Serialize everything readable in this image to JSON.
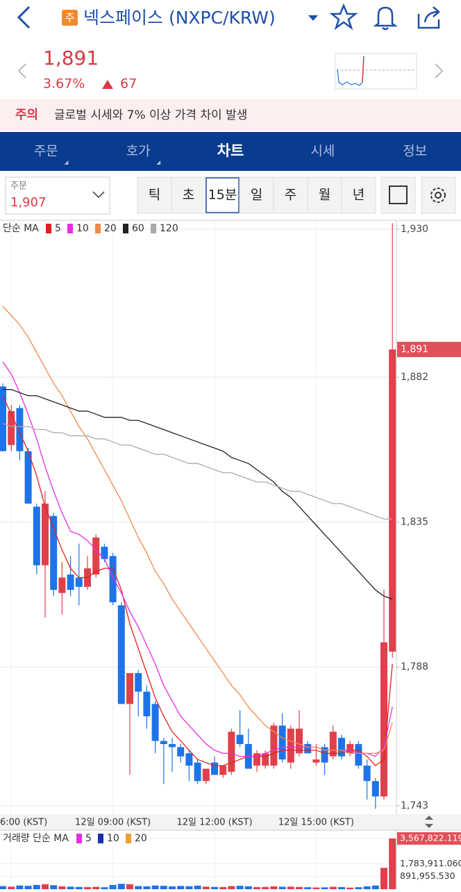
{
  "header": {
    "badge": "주",
    "title": "넥스페이스 (NXPC/KRW)"
  },
  "ticker": {
    "price": "1,891",
    "change_rate": "3.67%",
    "change": "67"
  },
  "notice": {
    "label": "주의",
    "message": "글로벌 시세와 7% 이상 가격 차이 발생"
  },
  "tabs": [
    "주문",
    "호가",
    "차트",
    "시세",
    "정보"
  ],
  "order": {
    "label": "주문",
    "price": "1,907"
  },
  "intervals": [
    "틱",
    "초",
    "15분",
    "일",
    "주",
    "월",
    "년"
  ],
  "chart_data": [
    {
      "type": "candlestick",
      "legend_title": "단순 MA",
      "up_color": "#e0404b",
      "down_color": "#1e73e8",
      "categories": [
        null,
        "6:00 (KST)",
        null,
        null,
        null,
        null,
        null,
        null,
        null,
        null,
        null,
        null,
        null,
        "12일 09:00 (KST)",
        null,
        null,
        null,
        null,
        null,
        null,
        null,
        null,
        null,
        null,
        null,
        "12일 12:00 (KST)",
        null,
        null,
        null,
        null,
        null,
        null,
        null,
        null,
        null,
        null,
        null,
        "12일 15:00 (KST)",
        null,
        null,
        null,
        null,
        null,
        null,
        null,
        null,
        null
      ],
      "open": [
        1879,
        1860,
        1872,
        1858,
        1840,
        1821,
        1837,
        1812,
        1818,
        1817,
        1814,
        1818,
        1827,
        1824,
        1808,
        1776,
        1786,
        1780,
        1776,
        1764,
        1763,
        1762,
        1760,
        1757,
        1751,
        1757,
        1753,
        1754,
        1766,
        1763,
        1756,
        1756,
        1756,
        1769,
        1757,
        1760,
        1763,
        1757,
        1762,
        1759,
        1765,
        1760,
        1763,
        1756,
        1751,
        1746,
        1793
      ],
      "high": [
        1880,
        1873,
        1873,
        1859,
        1841,
        1845,
        1838,
        1822,
        1824,
        1828,
        1824,
        1831,
        1828,
        1825,
        1809,
        1786,
        1787,
        1782,
        1777,
        1765,
        1765,
        1763,
        1761,
        1758,
        1755,
        1759,
        1756,
        1768,
        1774,
        1768,
        1761,
        1761,
        1770,
        1773,
        1769,
        1774,
        1764,
        1763,
        1763,
        1769,
        1766,
        1764,
        1764,
        1758,
        1752,
        1813,
        1932
      ],
      "low": [
        1858,
        1858,
        1855,
        1841,
        1818,
        1804,
        1811,
        1805,
        1811,
        1808,
        1813,
        1817,
        1822,
        1808,
        1776,
        1753,
        1772,
        1768,
        1760,
        1750,
        1754,
        1757,
        1751,
        1750,
        1750,
        1753,
        1752,
        1753,
        1762,
        1755,
        1754,
        1755,
        1755,
        1757,
        1755,
        1759,
        1760,
        1756,
        1753,
        1758,
        1758,
        1759,
        1755,
        1745,
        1742,
        1745,
        1791
      ],
      "close": [
        1858,
        1871,
        1858,
        1841,
        1821,
        1841,
        1813,
        1817,
        1813,
        1814,
        1820,
        1830,
        1823,
        1809,
        1776,
        1786,
        1780,
        1772,
        1764,
        1763,
        1762,
        1759,
        1756,
        1751,
        1755,
        1753,
        1756,
        1767,
        1763,
        1755,
        1760,
        1760,
        1769,
        1758,
        1768,
        1768,
        1760,
        1758,
        1757,
        1767,
        1759,
        1763,
        1756,
        1751,
        1746,
        1796,
        1891
      ],
      "last_label": "1,891",
      "moving_averages": [
        {
          "name": "5",
          "color": "#e0201e",
          "values": [
            1876,
            1870,
            1864,
            1858,
            1850,
            1840,
            1833,
            1826,
            1820,
            1817,
            1817,
            1819,
            1820,
            1820,
            1813,
            1802,
            1794,
            1786,
            1778,
            1772,
            1767,
            1764,
            1761,
            1758,
            1757,
            1756,
            1756,
            1757,
            1758,
            1759,
            1759,
            1759,
            1760,
            1761,
            1761,
            1761,
            1761,
            1761,
            1760,
            1760,
            1760,
            1761,
            1761,
            1759,
            1756,
            1758,
            1789
          ]
        },
        {
          "name": "10",
          "color": "#e52ee5",
          "values": [
            1887,
            1883,
            1877,
            1870,
            1862,
            1853,
            1845,
            1838,
            1832,
            1831,
            1829,
            1826,
            1823,
            1817,
            1812,
            1806,
            1801,
            1795,
            1789,
            1782,
            1777,
            1772,
            1769,
            1766,
            1763,
            1761,
            1760,
            1760,
            1759,
            1759,
            1759,
            1760,
            1761,
            1762,
            1762,
            1762,
            1762,
            1762,
            1761,
            1761,
            1761,
            1761,
            1760,
            1760,
            1759,
            1762,
            1775
          ]
        },
        {
          "name": "20",
          "color": "#f08a4b",
          "values": [
            1905,
            1902,
            1899,
            1895,
            1890,
            1885,
            1880,
            1876,
            1871,
            1866,
            1862,
            1857,
            1852,
            1847,
            1842,
            1836,
            1830,
            1825,
            1819,
            1815,
            1810,
            1806,
            1802,
            1798,
            1794,
            1790,
            1786,
            1782,
            1779,
            1775,
            1772,
            1769,
            1767,
            1765,
            1764,
            1763,
            1762,
            1762,
            1761,
            1761,
            1761,
            1760,
            1760,
            1760,
            1760,
            1761,
            1770
          ]
        },
        {
          "name": "60",
          "color": "#222222",
          "values": [
            1878,
            1878,
            1877,
            1876,
            1876,
            1875,
            1874,
            1873,
            1872,
            1871,
            1871,
            1870,
            1869,
            1869,
            1869,
            1868,
            1868,
            1867,
            1866,
            1865,
            1864,
            1863,
            1862,
            1861,
            1860,
            1859,
            1858,
            1856,
            1855,
            1854,
            1852,
            1850,
            1848,
            1845,
            1843,
            1840,
            1837,
            1834,
            1831,
            1828,
            1825,
            1822,
            1819,
            1816,
            1813,
            1811,
            1810
          ]
        },
        {
          "name": "120",
          "color": "#aaaaaa",
          "values": [
            1867,
            1866,
            1866,
            1866,
            1865,
            1865,
            1864,
            1864,
            1863,
            1863,
            1863,
            1862,
            1862,
            1861,
            1860,
            1860,
            1859,
            1858,
            1857,
            1857,
            1856,
            1855,
            1854,
            1854,
            1853,
            1852,
            1851,
            1851,
            1850,
            1849,
            1848,
            1848,
            1847,
            1846,
            1845,
            1845,
            1844,
            1843,
            1842,
            1841,
            1841,
            1840,
            1839,
            1838,
            1837,
            1836,
            1836
          ]
        }
      ],
      "ylim": [
        1740.7,
        1932.7
      ],
      "yticks": [
        {
          "value": 1743,
          "label": "1,743"
        },
        {
          "value": 1788,
          "label": "1,788"
        },
        {
          "value": 1835,
          "label": "1,835"
        },
        {
          "value": 1882,
          "label": "1,882"
        },
        {
          "value": 1930,
          "label": "1,930"
        }
      ],
      "grid": true
    },
    {
      "type": "bar",
      "legend_title": "거래량 단순 MA",
      "values": [
        220000,
        180000,
        260000,
        240000,
        300000,
        350000,
        280000,
        200000,
        180000,
        160000,
        150000,
        170000,
        140000,
        300000,
        380000,
        350000,
        220000,
        200000,
        260000,
        240000,
        200000,
        230000,
        210000,
        250000,
        180000,
        160000,
        150000,
        220000,
        240000,
        210000,
        150000,
        160000,
        200000,
        170000,
        180000,
        160000,
        140000,
        120000,
        130000,
        170000,
        150000,
        110000,
        140000,
        200000,
        260000,
        1500000,
        3567822.119
      ],
      "moving_averages": [
        {
          "name": "5",
          "color": "#e52ee5"
        },
        {
          "name": "10",
          "color": "#1a2fb0"
        },
        {
          "name": "20",
          "color": "#f0a030"
        }
      ],
      "ylim": [
        0,
        4150000
      ],
      "yticks": [
        {
          "value": 891955.53,
          "label": "891,955.530"
        },
        {
          "value": 1783911.06,
          "label": "1,783,911.060"
        },
        {
          "value": 3567822.119,
          "label": "3,567,822.119"
        }
      ]
    }
  ]
}
